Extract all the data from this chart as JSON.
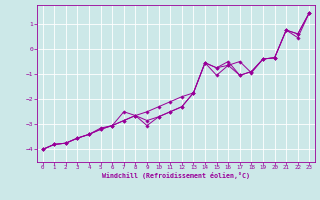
{
  "xlabel": "Windchill (Refroidissement éolien,°C)",
  "bg_color": "#cce8e8",
  "line_color": "#990099",
  "grid_color": "#ffffff",
  "xlim": [
    -0.5,
    23.5
  ],
  "ylim": [
    -4.5,
    1.75
  ],
  "yticks": [
    1,
    0,
    -1,
    -2,
    -3,
    -4
  ],
  "xticks": [
    0,
    1,
    2,
    3,
    4,
    5,
    6,
    7,
    8,
    9,
    10,
    11,
    12,
    13,
    14,
    15,
    16,
    17,
    18,
    19,
    20,
    21,
    22,
    23
  ],
  "x": [
    0,
    1,
    2,
    3,
    4,
    5,
    6,
    7,
    8,
    9,
    10,
    11,
    12,
    13,
    14,
    15,
    16,
    17,
    18,
    19,
    20,
    21,
    22,
    23
  ],
  "series1": [
    -4.0,
    -3.8,
    -3.75,
    -3.55,
    -3.4,
    -3.15,
    -3.05,
    -2.5,
    -2.65,
    -3.05,
    -2.7,
    -2.5,
    -2.3,
    -1.75,
    -0.55,
    -1.05,
    -0.65,
    -0.5,
    -0.95,
    -0.4,
    -0.35,
    0.75,
    0.6,
    1.45
  ],
  "series2": [
    -4.0,
    -3.8,
    -3.75,
    -3.55,
    -3.4,
    -3.2,
    -3.05,
    -2.85,
    -2.65,
    -2.5,
    -2.3,
    -2.1,
    -1.9,
    -1.75,
    -0.55,
    -0.75,
    -0.65,
    -1.05,
    -0.9,
    -0.4,
    -0.35,
    0.75,
    0.6,
    1.45
  ],
  "series3": [
    -4.0,
    -3.8,
    -3.75,
    -3.55,
    -3.4,
    -3.2,
    -3.05,
    -2.85,
    -2.65,
    -2.85,
    -2.7,
    -2.5,
    -2.3,
    -1.75,
    -0.55,
    -0.75,
    -0.5,
    -1.05,
    -0.9,
    -0.4,
    -0.35,
    0.75,
    0.45,
    1.45
  ]
}
